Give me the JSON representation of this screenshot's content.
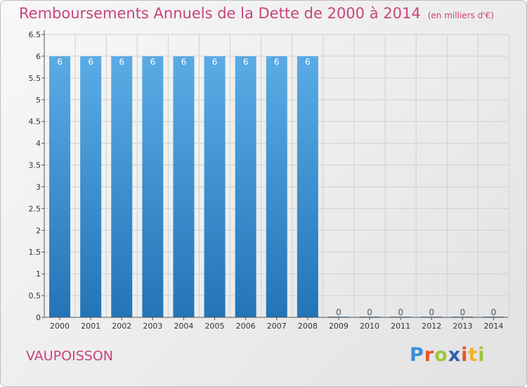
{
  "title": "Remboursements Annuels de la Dette de 2000 à 2014",
  "unit_label": "(en milliers d'€)",
  "commune": "VAUPOISSON",
  "logo": {
    "letters": [
      "P",
      "r",
      "o",
      "x",
      "i",
      "t",
      "i"
    ],
    "colors": [
      "#3a8fd6",
      "#e8532a",
      "#9dc63b",
      "#2f5ea8",
      "#e8532a",
      "#f2b321",
      "#9dc63b"
    ]
  },
  "colors": {
    "bar_top": "#5aabe5",
    "bar_bottom": "#2474b8",
    "title": "#c8447a",
    "grid": "#d0d0d0",
    "axis": "#555555"
  },
  "chart_data": {
    "type": "bar",
    "title": "Remboursements Annuels de la Dette de 2000 à 2014",
    "ylabel": "en milliers d'€",
    "categories": [
      "2000",
      "2001",
      "2002",
      "2003",
      "2004",
      "2005",
      "2006",
      "2007",
      "2008",
      "2009",
      "2010",
      "2011",
      "2012",
      "2013",
      "2014"
    ],
    "values": [
      6,
      6,
      6,
      6,
      6,
      6,
      6,
      6,
      6,
      0,
      0,
      0,
      0,
      0,
      0
    ],
    "ylim": [
      0,
      6.5
    ],
    "yticks": [
      0,
      0.5,
      1,
      1.5,
      2,
      2.5,
      3,
      3.5,
      4,
      4.5,
      5,
      5.5,
      6,
      6.5
    ],
    "ytick_labels": [
      "0",
      "0.5",
      "1",
      "1.5",
      "2",
      "2.5",
      "3",
      "3.5",
      "4",
      "4.5",
      "5",
      "5.5",
      "6",
      "6.5"
    ],
    "grid": true,
    "data_labels": [
      "6",
      "6",
      "6",
      "6",
      "6",
      "6",
      "6",
      "6",
      "6",
      "0",
      "0",
      "0",
      "0",
      "0",
      "0"
    ]
  }
}
